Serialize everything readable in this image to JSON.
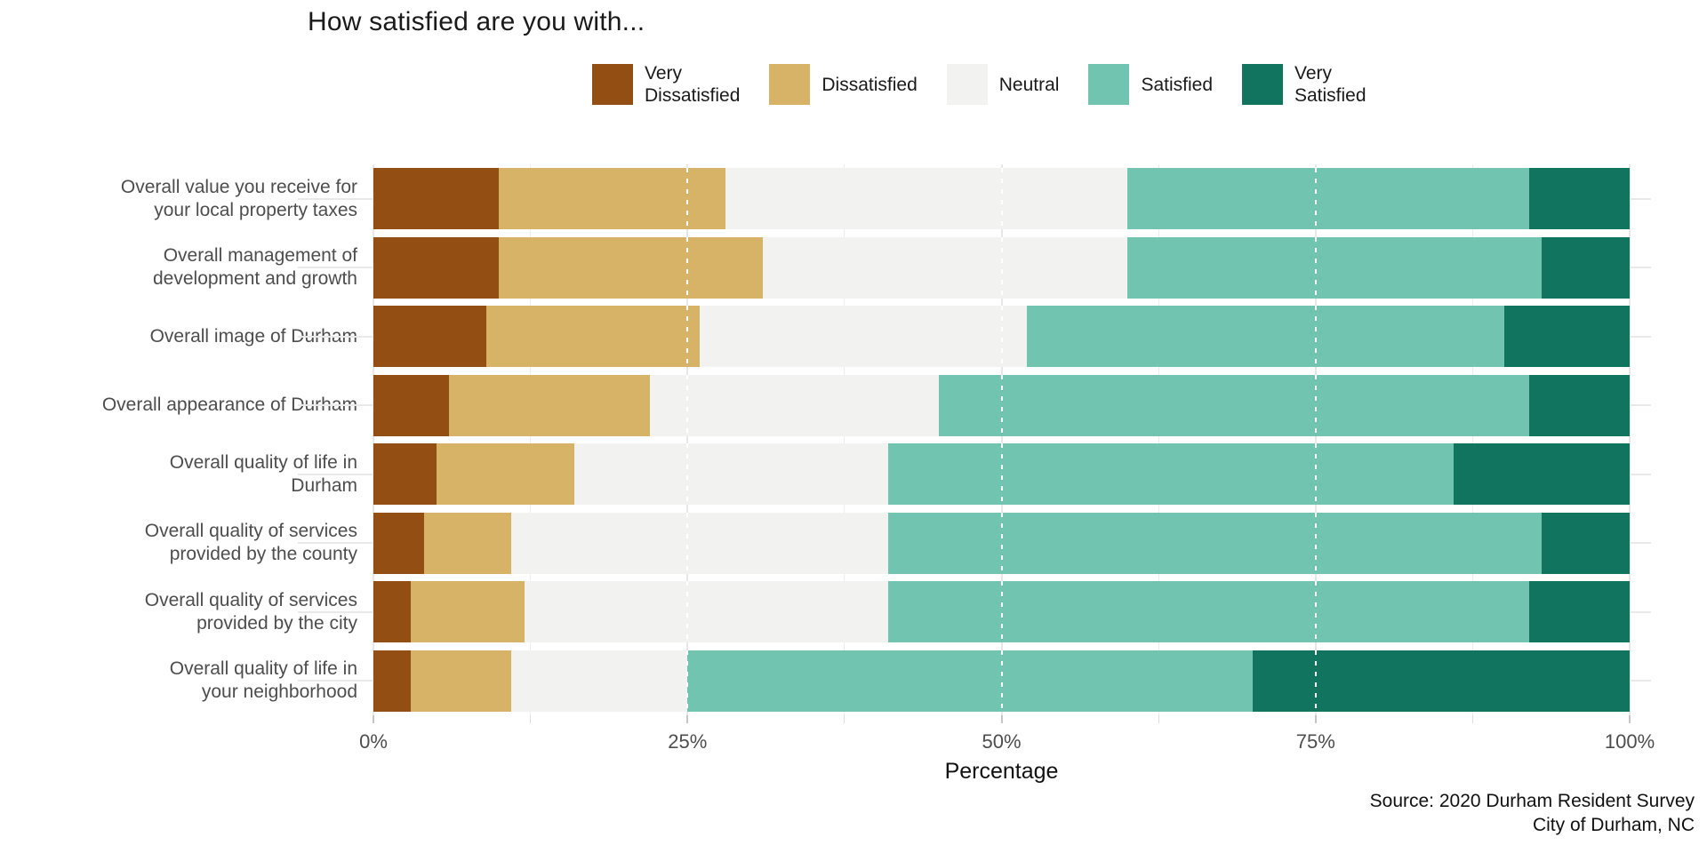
{
  "title": "How satisfied are you with...",
  "chart_data": {
    "type": "bar",
    "subtype": "horizontal_stacked_percentage",
    "title": "How satisfied are you with...",
    "xlabel": "Percentage",
    "ylabel": "",
    "xlim": [
      0,
      100
    ],
    "grid": true,
    "legend_position": "top",
    "x_tick_labels": [
      "0%",
      "25%",
      "50%",
      "75%",
      "100%"
    ],
    "x_major_ticks": [
      0,
      25,
      50,
      75,
      100
    ],
    "x_minor_ticks": [
      12.5,
      37.5,
      62.5,
      87.5
    ],
    "dotted_guides": [
      25,
      50,
      75
    ],
    "categories": [
      "Overall value you receive for your local property taxes",
      "Overall management of development and growth",
      "Overall image of Durham",
      "Overall appearance of Durham",
      "Overall quality of life in Durham",
      "Overall quality of services provided by the county",
      "Overall quality of services provided by the city",
      "Overall quality of life in your neighborhood"
    ],
    "category_label_lines": [
      [
        "Overall value you receive for",
        "your local property taxes"
      ],
      [
        "Overall management of",
        "development and growth"
      ],
      [
        "Overall image of Durham"
      ],
      [
        "Overall appearance of Durham"
      ],
      [
        "Overall quality of life in",
        "Durham"
      ],
      [
        "Overall quality of services",
        "provided by the county"
      ],
      [
        "Overall quality of services",
        "provided by the city"
      ],
      [
        "Overall quality of life in",
        "your neighborhood"
      ]
    ],
    "series": [
      {
        "name": "Very Dissatisfied",
        "label_lines": [
          "Very",
          "Dissatisfied"
        ],
        "color": "#924E13",
        "values": [
          10,
          10,
          9,
          6,
          5,
          4,
          3,
          3
        ]
      },
      {
        "name": "Dissatisfied",
        "label_lines": [
          "Dissatisfied"
        ],
        "color": "#D6B366",
        "values": [
          18,
          21,
          17,
          16,
          11,
          7,
          9,
          8
        ]
      },
      {
        "name": "Neutral",
        "label_lines": [
          "Neutral"
        ],
        "color": "#F2F2F0",
        "values": [
          32,
          29,
          26,
          23,
          25,
          30,
          29,
          14
        ]
      },
      {
        "name": "Satisfied",
        "label_lines": [
          "Satisfied"
        ],
        "color": "#70C4B0",
        "values": [
          32,
          33,
          38,
          47,
          45,
          52,
          51,
          45
        ]
      },
      {
        "name": "Very Satisfied",
        "label_lines": [
          "Very",
          "Satisfied"
        ],
        "color": "#10745F",
        "values": [
          8,
          7,
          10,
          8,
          14,
          7,
          8,
          30
        ]
      }
    ],
    "caption_lines": [
      "Source: 2020 Durham Resident Survey",
      "City of Durham, NC"
    ]
  },
  "style_colors": {
    "background": "#ffffff",
    "grid_major": "#e7e7e7",
    "grid_minor": "#ededed",
    "axis_text": "#4d4d4d",
    "title_text": "#1a1a1a",
    "guide_dotted": "#ffffff"
  }
}
